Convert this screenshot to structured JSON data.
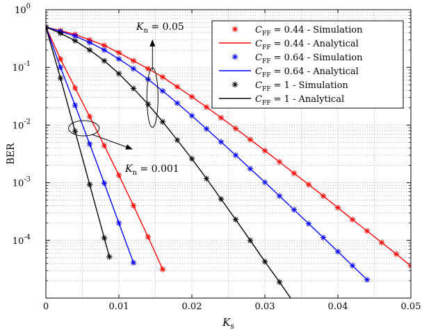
{
  "chart_data": {
    "type": "line",
    "xlabel": "K_s",
    "ylabel": "BER",
    "xlim": [
      0,
      0.05
    ],
    "ylim": [
      1e-05,
      1
    ],
    "y_scale": "log",
    "grid": true,
    "legend_position": "top-right",
    "x_ticks": [
      {
        "value": 0,
        "label": "0"
      },
      {
        "value": 0.01,
        "label": "0.01"
      },
      {
        "value": 0.02,
        "label": "0.02"
      },
      {
        "value": 0.03,
        "label": "0.03"
      },
      {
        "value": 0.04,
        "label": "0.04"
      },
      {
        "value": 0.05,
        "label": "0.05"
      }
    ],
    "y_ticks": [
      {
        "value": 1,
        "label": "10^0"
      },
      {
        "value": 0.1,
        "label": "10^-1"
      },
      {
        "value": 0.01,
        "label": "10^-2"
      },
      {
        "value": 0.001,
        "label": "10^-3"
      },
      {
        "value": 0.0001,
        "label": "10^-4"
      }
    ],
    "legend": [
      {
        "label": "C_FF = 0.44 - Simulation",
        "color": "#ff0000",
        "marker": "star"
      },
      {
        "label": "C_FF = 0.44 - Analytical",
        "color": "#ff0000",
        "marker": "line"
      },
      {
        "label": "C_FF = 0.64 - Simulation",
        "color": "#0000ff",
        "marker": "star"
      },
      {
        "label": "C_FF = 0.64 - Analytical",
        "color": "#0000ff",
        "marker": "line"
      },
      {
        "label": "C_FF = 1 - Simulation",
        "color": "#000000",
        "marker": "star"
      },
      {
        "label": "C_FF = 1 - Analytical",
        "color": "#000000",
        "marker": "line"
      }
    ],
    "series": [
      {
        "group": "K_n = 0.05",
        "color": "#ff0000",
        "x": [
          0,
          0.002,
          0.004,
          0.006,
          0.008,
          0.01,
          0.012,
          0.014,
          0.016,
          0.018,
          0.02,
          0.022,
          0.024,
          0.026,
          0.028,
          0.03,
          0.032,
          0.034,
          0.036,
          0.038,
          0.04,
          0.042,
          0.044,
          0.046,
          0.048,
          0.05
        ],
        "y": [
          0.5,
          0.433,
          0.372,
          0.3,
          0.24,
          0.18,
          0.13,
          0.095,
          0.068,
          0.046,
          0.031,
          0.0205,
          0.0134,
          0.0087,
          0.0056,
          0.0036,
          0.0023,
          0.00146,
          0.00093,
          0.00059,
          0.00037,
          0.00023,
          0.000146,
          9.2e-05,
          5.8e-05,
          3.6e-05
        ]
      },
      {
        "group": "K_n = 0.05",
        "color": "#0000ff",
        "x": [
          0,
          0.002,
          0.004,
          0.006,
          0.008,
          0.01,
          0.012,
          0.014,
          0.016,
          0.018,
          0.02,
          0.022,
          0.024,
          0.026,
          0.028,
          0.03,
          0.032,
          0.034,
          0.036,
          0.038,
          0.04,
          0.042,
          0.044
        ],
        "y": [
          0.5,
          0.42,
          0.35,
          0.27,
          0.2,
          0.14,
          0.095,
          0.062,
          0.039,
          0.024,
          0.0145,
          0.0086,
          0.0051,
          0.003,
          0.00175,
          0.00102,
          0.00059,
          0.00034,
          0.000195,
          0.000112,
          6.4e-05,
          3.65e-05,
          2.08e-05
        ]
      },
      {
        "group": "K_n = 0.05",
        "color": "#000000",
        "x": [
          0,
          0.002,
          0.004,
          0.006,
          0.008,
          0.01,
          0.012,
          0.014,
          0.016,
          0.018,
          0.02,
          0.022,
          0.024,
          0.026,
          0.028,
          0.03,
          0.032,
          0.034
        ],
        "y": [
          0.5,
          0.39,
          0.29,
          0.2,
          0.13,
          0.078,
          0.043,
          0.023,
          0.0114,
          0.0055,
          0.0026,
          0.00118,
          0.00052,
          0.00023,
          0.0001,
          4.3e-05,
          1.9e-05,
          8.2e-06
        ]
      },
      {
        "group": "K_n = 0.001",
        "color": "#ff0000",
        "x": [
          0,
          0.002,
          0.004,
          0.006,
          0.008,
          0.01,
          0.012,
          0.014,
          0.016
        ],
        "y": [
          0.5,
          0.14,
          0.044,
          0.014,
          0.0044,
          0.00135,
          0.0004,
          0.000115,
          3.15e-05
        ]
      },
      {
        "group": "K_n = 0.001",
        "color": "#0000ff",
        "x": [
          0,
          0.002,
          0.004,
          0.006,
          0.008,
          0.01,
          0.012
        ],
        "y": [
          0.5,
          0.1,
          0.022,
          0.0047,
          0.00098,
          0.0002,
          4.1e-05
        ]
      },
      {
        "group": "K_n = 0.001",
        "color": "#000000",
        "x": [
          0,
          0.002,
          0.004,
          0.006,
          0.008,
          0.0087
        ],
        "y": [
          0.5,
          0.065,
          0.0078,
          0.00093,
          0.00011,
          5.2e-05
        ]
      }
    ],
    "annotations": [
      {
        "text": "K_n = 0.05"
      },
      {
        "text": "K_n = 0.001"
      }
    ]
  }
}
